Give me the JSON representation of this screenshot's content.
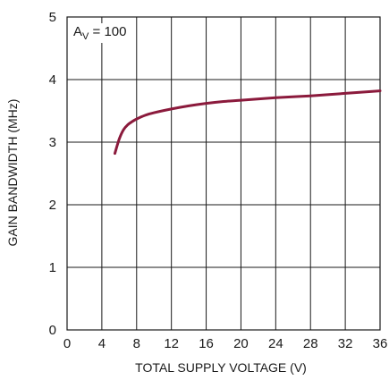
{
  "chart_data": {
    "type": "line",
    "title": "",
    "xlabel": "TOTAL SUPPLY VOLTAGE (V)",
    "ylabel": "GAIN BANDWIDTH (MHz)",
    "xlim": [
      0,
      36
    ],
    "ylim": [
      0,
      5
    ],
    "x_ticks": [
      "0",
      "4",
      "8",
      "12",
      "16",
      "20",
      "24",
      "28",
      "32",
      "36"
    ],
    "y_ticks": [
      "0",
      "1",
      "2",
      "3",
      "4",
      "5"
    ],
    "grid": true,
    "annotation": {
      "main": "A",
      "sub": "V",
      "rest": " = 100"
    },
    "series": [
      {
        "color": "#8b1a3c",
        "x": [
          5.5,
          6.0,
          6.5,
          7.0,
          7.5,
          8.0,
          9.0,
          10.0,
          12.0,
          14.0,
          16.0,
          18.0,
          20.0,
          24.0,
          28.0,
          32.0,
          36.0
        ],
        "y": [
          2.82,
          3.05,
          3.2,
          3.28,
          3.33,
          3.37,
          3.43,
          3.47,
          3.53,
          3.58,
          3.62,
          3.65,
          3.67,
          3.71,
          3.74,
          3.78,
          3.82
        ]
      }
    ]
  }
}
